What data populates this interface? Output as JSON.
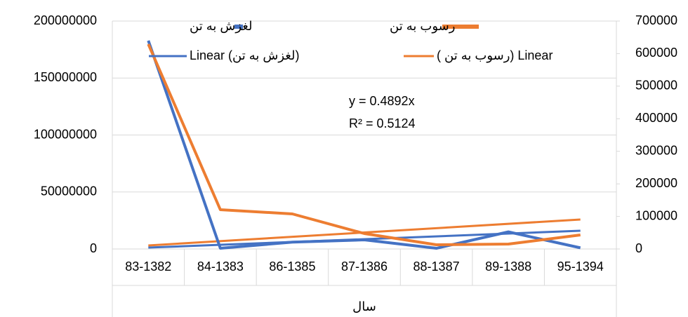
{
  "chart_data": {
    "type": "line",
    "x_label": "سال",
    "categories": [
      "83-1382",
      "84-1383",
      "86-1385",
      "87-1386",
      "88-1387",
      "89-1388",
      "95-1394"
    ],
    "series": [
      {
        "name": "لغزش به تن",
        "color": "#4472c4",
        "axis": "y",
        "values": [
          182800000,
          600000,
          6000000,
          8000000,
          600000,
          15000000,
          1000000
        ]
      },
      {
        "name": "رسوب به تن",
        "color": "#ed7d31",
        "axis": "y2",
        "values": [
          629000,
          120600,
          107700,
          47400,
          12900,
          15000,
          43000
        ]
      }
    ],
    "trendlines": [
      {
        "name": "Linear (لغزش به تن)",
        "color": "#4472c4",
        "axis": "y",
        "values": [
          1200000,
          16000000
        ]
      },
      {
        "name": "( رسوب به تن) Linear",
        "color": "#ed7d31",
        "axis": "y2",
        "values": [
          10800,
          90500
        ]
      }
    ],
    "annotations": [
      "y = 0.4892x",
      "R² = 0.5124"
    ],
    "ylim": [
      0,
      200000000
    ],
    "yticks": [
      0,
      50000000,
      100000000,
      150000000,
      200000000
    ],
    "y2lim": [
      0,
      700000
    ],
    "y2ticks": [
      0,
      100000,
      200000,
      300000,
      400000,
      500000,
      600000,
      700000
    ],
    "grid": true
  }
}
